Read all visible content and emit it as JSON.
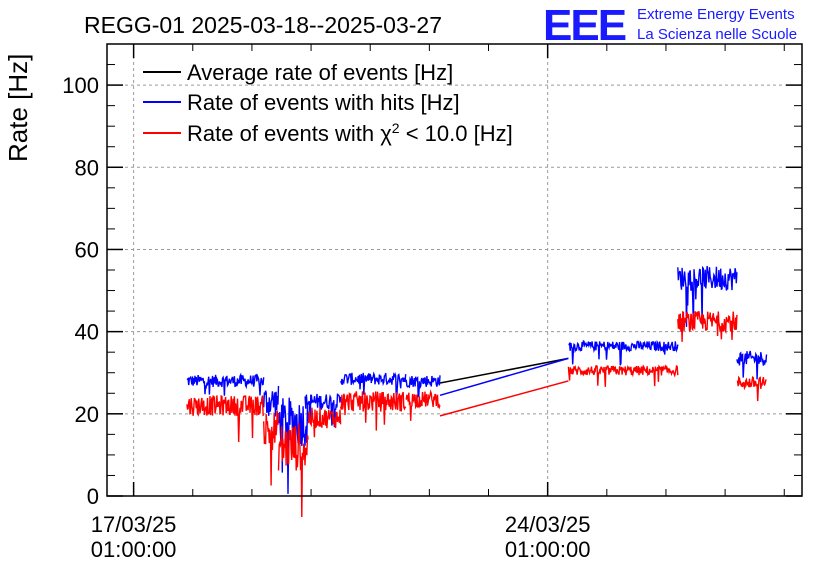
{
  "header": {
    "title": "REGG-01 2025-03-18--2025-03-27",
    "logo_text": "EEE",
    "logo_line1": "Extreme Energy Events",
    "logo_line2": "La Scienza nelle Scuole"
  },
  "chart_data": {
    "type": "line",
    "ylabel": "Rate [Hz]",
    "xlabel": "",
    "ylim": [
      0,
      110
    ],
    "xlim_days": [
      -0.45,
      11.3
    ],
    "grid": true,
    "y_ticks": [
      0,
      20,
      40,
      60,
      80,
      100
    ],
    "x_ticks": [
      {
        "day": 0,
        "date": "17/03/25",
        "time": "01:00:00"
      },
      {
        "day": 7,
        "date": "24/03/25",
        "time": "01:00:00"
      }
    ],
    "legend": [
      {
        "label": "Average rate of events [Hz]",
        "color": "#000000"
      },
      {
        "label": "Rate of events with hits [Hz]",
        "color": "#0000ff"
      },
      {
        "label_prefix": "Rate of events with ",
        "chi_symbol": "χ",
        "chi_exp": "2",
        "label_suffix": " < 10.0 [Hz]",
        "color": "#ff0000"
      }
    ],
    "legend_position": "top-left",
    "series": [
      {
        "name": "Average rate of events [Hz]",
        "color": "#000000",
        "points": [
          [
            0.9,
            28
          ],
          [
            1.5,
            28
          ],
          [
            2,
            27
          ],
          [
            2.3,
            24
          ],
          [
            2.6,
            17
          ],
          [
            2.9,
            22
          ],
          [
            3.1,
            23
          ],
          [
            3.5,
            26
          ],
          [
            4.5,
            28
          ],
          [
            5.5,
            28
          ],
          [
            5.1,
            27
          ],
          [
            5.2,
            29.5
          ],
          [
            5.17,
            29
          ],
          [
            5.18,
            29
          ],
          [
            5.3,
            29
          ],
          [
            5.17,
            29
          ],
          [
            5.18,
            28
          ],
          [
            7.35,
            33.5
          ],
          [
            9.2,
            36.5
          ],
          [
            9.25,
            52
          ],
          [
            10.2,
            52
          ],
          [
            10.25,
            33
          ],
          [
            10.7,
            33
          ]
        ]
      },
      {
        "name": "Rate of events with hits [Hz]",
        "color": "#0000ff",
        "segments": [
          {
            "from": 0.9,
            "to": 2.2,
            "base": 28,
            "noise": 1.5
          },
          {
            "from": 2.2,
            "to": 2.45,
            "base": 23,
            "noise": 4
          },
          {
            "from": 2.45,
            "to": 2.95,
            "base": 18,
            "noise": 6
          },
          {
            "from": 2.95,
            "to": 2.9,
            "base": 23,
            "noise": 2
          },
          {
            "from": 2.9,
            "to": 3.5,
            "base": 23,
            "noise": 2
          },
          {
            "from": 3.5,
            "to": 4.6,
            "base": 28.5,
            "noise": 1.5
          },
          {
            "from": 4.6,
            "to": 5.18,
            "base": 28,
            "noise": 1.5
          },
          {
            "from": 7.35,
            "to": 9.2,
            "base": 36.5,
            "noise": 1.2
          },
          {
            "from": 9.2,
            "to": 10.2,
            "base": 53,
            "noise": 3
          },
          {
            "from": 10.2,
            "to": 10.7,
            "base": 33.5,
            "noise": 1.8
          }
        ],
        "gaps": [
          [
            5.18,
            24.5,
            7.35,
            33.5
          ]
        ]
      },
      {
        "name": "Rate of events with chi2 < 10.0 [Hz]",
        "color": "#ff0000",
        "segments": [
          {
            "from": 0.9,
            "to": 2.2,
            "base": 22,
            "noise": 2.5
          },
          {
            "from": 2.2,
            "to": 2.45,
            "base": 16,
            "noise": 5
          },
          {
            "from": 2.45,
            "to": 2.95,
            "base": 12,
            "noise": 6
          },
          {
            "from": 2.95,
            "to": 3.5,
            "base": 19,
            "noise": 2.5
          },
          {
            "from": 3.5,
            "to": 4.6,
            "base": 23,
            "noise": 2.5
          },
          {
            "from": 4.6,
            "to": 5.18,
            "base": 23.5,
            "noise": 2
          },
          {
            "from": 7.35,
            "to": 9.2,
            "base": 30.5,
            "noise": 1.2
          },
          {
            "from": 9.2,
            "to": 10.2,
            "base": 42.5,
            "noise": 2.5
          },
          {
            "from": 10.2,
            "to": 10.7,
            "base": 27.5,
            "noise": 1.5
          }
        ],
        "gaps": [
          [
            5.18,
            19.5,
            7.35,
            28
          ]
        ]
      }
    ]
  },
  "colors": {
    "axis": "#000000",
    "grid": "#9a9a9a",
    "logo": "#1a1aff"
  }
}
